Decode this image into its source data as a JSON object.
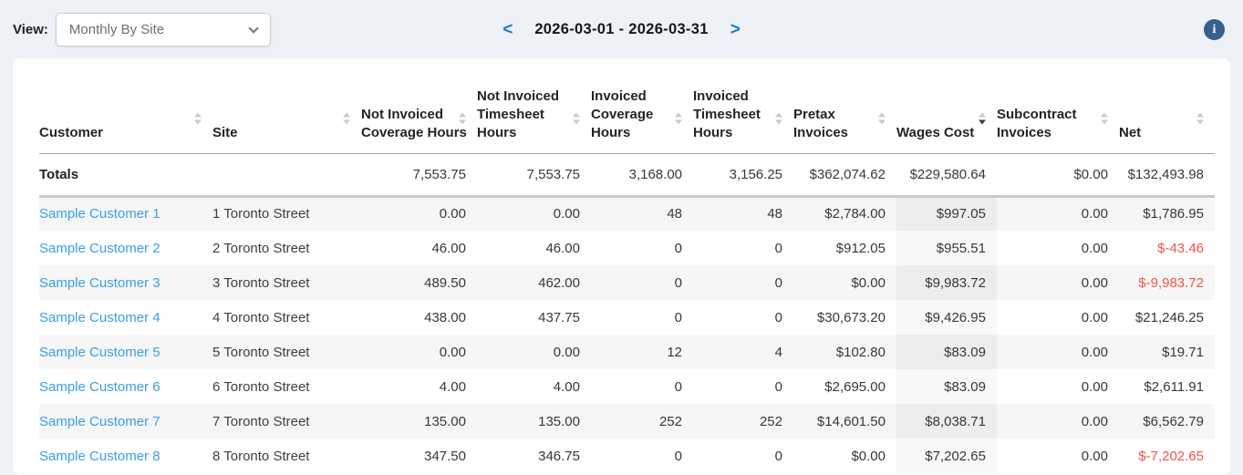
{
  "toolbar": {
    "view_label": "View:",
    "view_value": "Monthly By Site",
    "prev_label": "<",
    "date_range": "2026-03-01 - 2026-03-31",
    "next_label": ">",
    "info_glyph": "i"
  },
  "colors": {
    "link": "#3b9fe3",
    "negative": "#f05549",
    "nav_arrow": "#1b7ed3",
    "info_icon_bg": "#35618e"
  },
  "table": {
    "columns": [
      {
        "label": "Customer",
        "lines": [
          "Customer"
        ],
        "sort": "none",
        "numeric": false
      },
      {
        "label": "Site",
        "lines": [
          "Site"
        ],
        "sort": "none",
        "numeric": false
      },
      {
        "label": "Not Invoiced Coverage Hours",
        "lines": [
          "Not Invoiced",
          "Coverage Hours"
        ],
        "sort": "none",
        "numeric": true
      },
      {
        "label": "Not Invoiced Timesheet Hours",
        "lines": [
          "Not Invoiced",
          "Timesheet",
          "Hours"
        ],
        "sort": "none",
        "numeric": true
      },
      {
        "label": "Invoiced Coverage Hours",
        "lines": [
          "Invoiced",
          "Coverage",
          "Hours"
        ],
        "sort": "none",
        "numeric": true
      },
      {
        "label": "Invoiced Timesheet Hours",
        "lines": [
          "Invoiced",
          "Timesheet",
          "Hours"
        ],
        "sort": "none",
        "numeric": true
      },
      {
        "label": "Pretax Invoices",
        "lines": [
          "Pretax",
          "Invoices"
        ],
        "sort": "none",
        "numeric": true
      },
      {
        "label": "Wages Cost",
        "lines": [
          "Wages Cost"
        ],
        "sort": "desc",
        "numeric": true
      },
      {
        "label": "Subcontract Invoices",
        "lines": [
          "Subcontract",
          "Invoices"
        ],
        "sort": "none",
        "numeric": true
      },
      {
        "label": "Net",
        "lines": [
          "Net"
        ],
        "sort": "none",
        "numeric": true
      }
    ],
    "totals": {
      "label": "Totals",
      "values": [
        "7,553.75",
        "7,553.75",
        "3,168.00",
        "3,156.25",
        "$362,074.62",
        "$229,580.64",
        "$0.00",
        "$132,493.98"
      ]
    },
    "rows": [
      {
        "customer": "Sample Customer 1",
        "site": "1 Toronto Street",
        "values": [
          "0.00",
          "0.00",
          "48",
          "48",
          "$2,784.00",
          "$997.05",
          "0.00",
          "$1,786.95"
        ]
      },
      {
        "customer": "Sample Customer 2",
        "site": "2 Toronto Street",
        "values": [
          "46.00",
          "46.00",
          "0",
          "0",
          "$912.05",
          "$955.51",
          "0.00",
          "$-43.46"
        ]
      },
      {
        "customer": "Sample Customer 3",
        "site": "3 Toronto Street",
        "values": [
          "489.50",
          "462.00",
          "0",
          "0",
          "$0.00",
          "$9,983.72",
          "0.00",
          "$-9,983.72"
        ]
      },
      {
        "customer": "Sample Customer 4",
        "site": "4 Toronto Street",
        "values": [
          "438.00",
          "437.75",
          "0",
          "0",
          "$30,673.20",
          "$9,426.95",
          "0.00",
          "$21,246.25"
        ]
      },
      {
        "customer": "Sample Customer 5",
        "site": "5 Toronto Street",
        "values": [
          "0.00",
          "0.00",
          "12",
          "4",
          "$102.80",
          "$83.09",
          "0.00",
          "$19.71"
        ]
      },
      {
        "customer": "Sample Customer 6",
        "site": "6 Toronto Street",
        "values": [
          "4.00",
          "4.00",
          "0",
          "0",
          "$2,695.00",
          "$83.09",
          "0.00",
          "$2,611.91"
        ]
      },
      {
        "customer": "Sample Customer 7",
        "site": "7 Toronto Street",
        "values": [
          "135.00",
          "135.00",
          "252",
          "252",
          "$14,601.50",
          "$8,038.71",
          "0.00",
          "$6,562.79"
        ]
      },
      {
        "customer": "Sample Customer 8",
        "site": "8 Toronto Street",
        "values": [
          "347.50",
          "346.75",
          "0",
          "0",
          "$0.00",
          "$7,202.65",
          "0.00",
          "$-7,202.65"
        ]
      }
    ]
  }
}
